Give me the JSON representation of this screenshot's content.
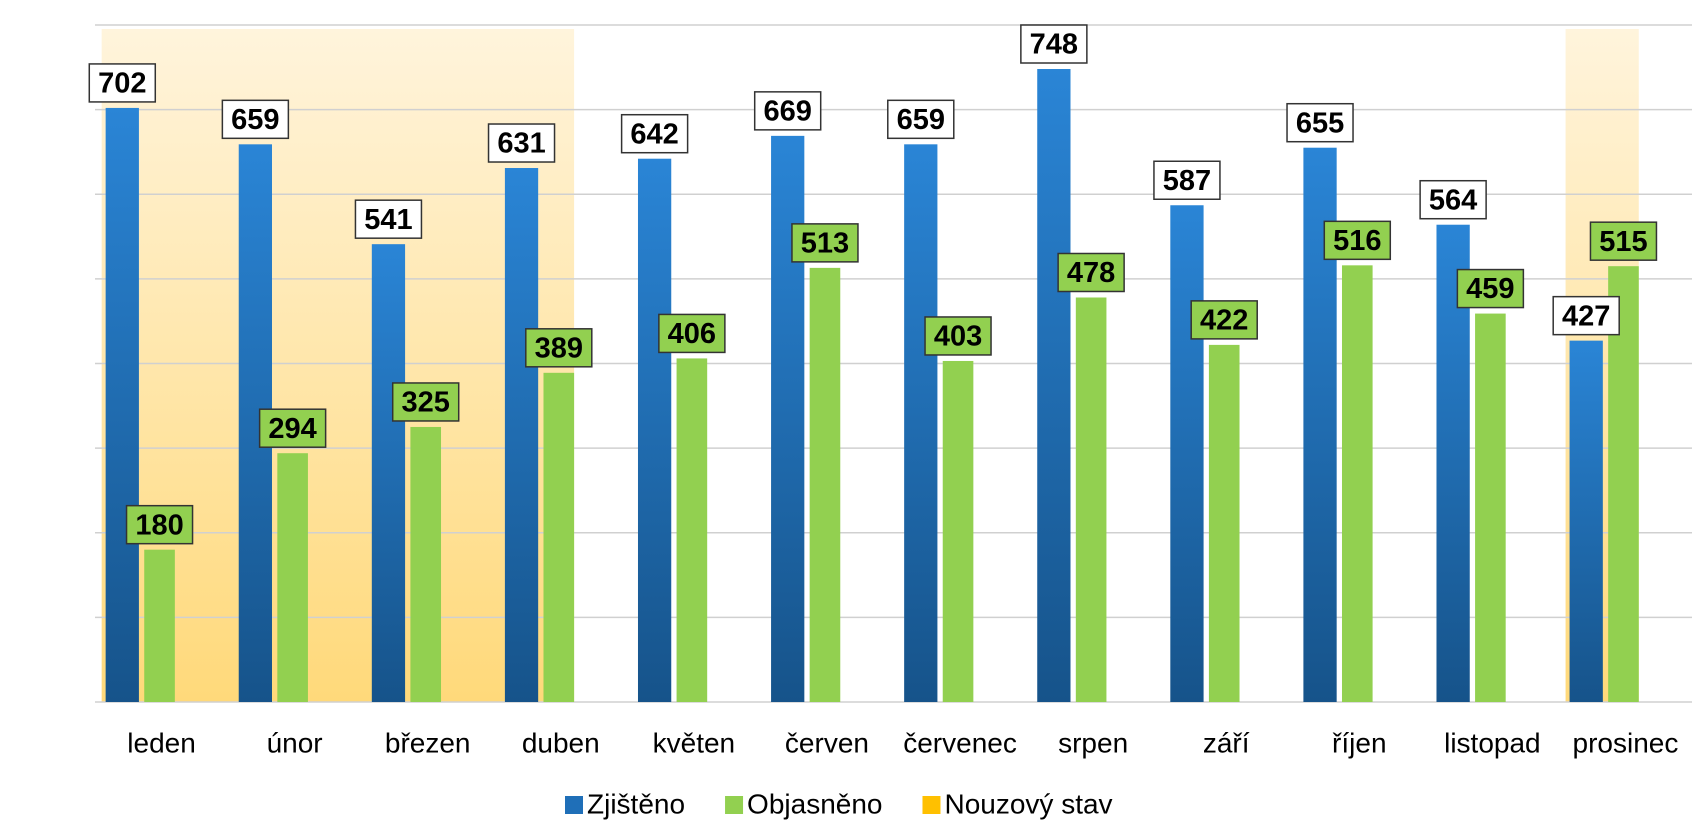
{
  "chart_data": {
    "type": "bar",
    "categories": [
      "leden",
      "únor",
      "březen",
      "duben",
      "květen",
      "červen",
      "červenec",
      "srpen",
      "září",
      "říjen",
      "listopad",
      "prosinec"
    ],
    "series": [
      {
        "name": "Zjištěno",
        "color": "#1f6fb8",
        "values": [
          702,
          659,
          541,
          631,
          642,
          669,
          659,
          748,
          587,
          655,
          564,
          427
        ]
      },
      {
        "name": "Objasněno",
        "color": "#92d050",
        "values": [
          180,
          294,
          325,
          389,
          406,
          513,
          403,
          478,
          422,
          516,
          459,
          515
        ]
      }
    ],
    "highlight": {
      "name": "Nouzový stav",
      "color": "#ffc000",
      "ranges": [
        [
          "leden",
          "duben"
        ],
        [
          "prosinec",
          "prosinec"
        ]
      ]
    },
    "ylim": [
      0,
      800
    ],
    "yticks": [
      0,
      100,
      200,
      300,
      400,
      500,
      600,
      700,
      800
    ],
    "grid": true,
    "legend": "bottom"
  }
}
